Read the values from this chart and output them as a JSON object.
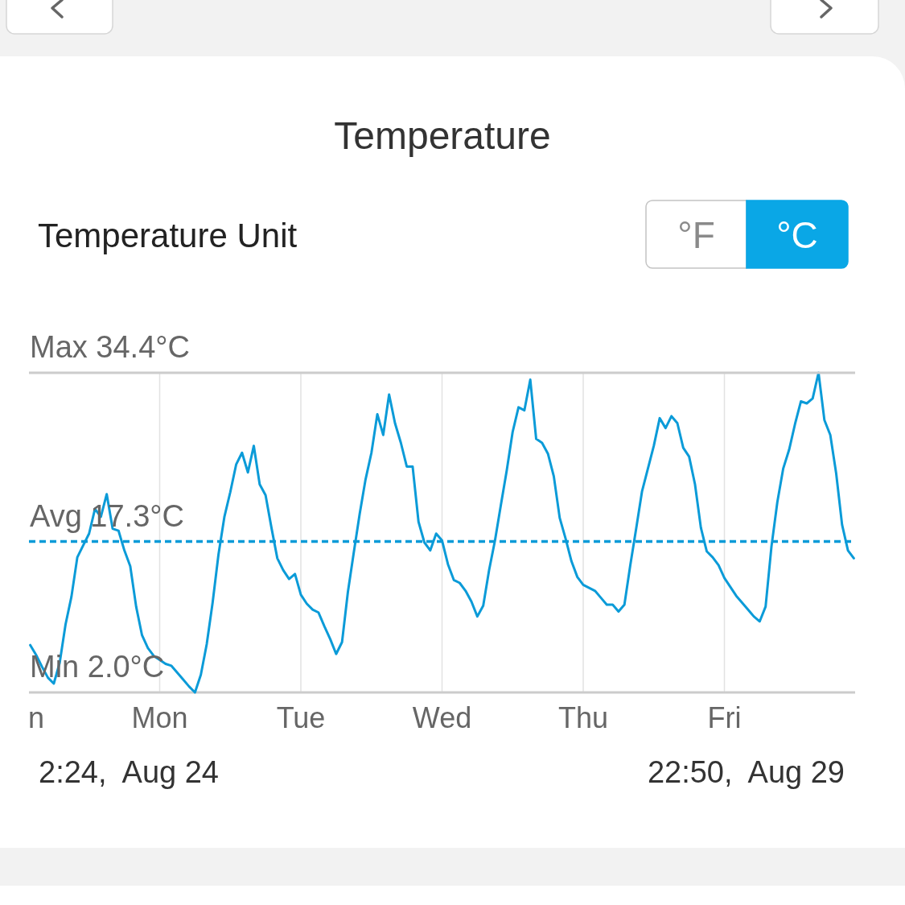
{
  "chart_data": {
    "type": "line",
    "title": "Temperature",
    "annotations": [
      "Temperature Unit",
      "°F",
      "°C",
      "2:24,  Aug 24",
      "22:50,  Aug 29",
      "Min 2.0°C"
    ],
    "categories": [
      null,
      "n",
      null,
      null,
      null,
      null,
      null,
      null,
      null,
      null,
      null,
      null,
      null,
      null,
      null,
      null,
      null,
      null,
      null,
      null,
      null,
      null,
      "Mon",
      null,
      null,
      null,
      null,
      null,
      null,
      null,
      null,
      null,
      null,
      null,
      null,
      null,
      null,
      null,
      null,
      null,
      null,
      null,
      null,
      null,
      null,
      null,
      "Tue",
      null,
      null,
      null,
      null,
      null,
      null,
      null,
      null,
      null,
      null,
      null,
      null,
      null,
      null,
      null,
      null,
      null,
      null,
      null,
      null,
      null,
      null,
      null,
      "Wed",
      null,
      null,
      null,
      null,
      null,
      null,
      null,
      null,
      null,
      null,
      null,
      null,
      null,
      null,
      null,
      null,
      null,
      null,
      null,
      null,
      null,
      null,
      null,
      "Thu",
      null,
      null,
      null,
      null,
      null,
      null,
      null,
      null,
      null,
      null,
      null,
      null,
      null,
      null,
      null,
      null,
      null,
      null,
      null,
      null,
      null,
      null,
      null,
      "Fri",
      null,
      null,
      null,
      null,
      null,
      null,
      null,
      null,
      null,
      null,
      null,
      null,
      null,
      null,
      null,
      null,
      null,
      null,
      null,
      null,
      null,
      null
    ],
    "series": [
      {
        "color": "#0b9bd8",
        "values": [
          6.8,
          5.8,
          4.6,
          3.5,
          2.9,
          5.0,
          8.9,
          11.7,
          15.7,
          16.9,
          18.1,
          20.6,
          19.8,
          22.1,
          18.6,
          18.4,
          16.4,
          14.8,
          10.7,
          7.8,
          6.5,
          5.7,
          5.3,
          4.9,
          4.7,
          4.0,
          3.3,
          2.6,
          2.0,
          3.8,
          6.9,
          11.1,
          16.0,
          19.8,
          22.3,
          25.1,
          26.3,
          24.3,
          27.0,
          23.1,
          22.0,
          18.7,
          15.6,
          14.4,
          13.5,
          14.0,
          11.9,
          11.0,
          10.4,
          10.1,
          8.7,
          7.4,
          5.9,
          7.1,
          12.2,
          16.2,
          20.1,
          23.6,
          26.3,
          30.2,
          28.1,
          32.2,
          29.3,
          27.3,
          24.9,
          24.9,
          19.3,
          17.2,
          16.4,
          18.1,
          17.4,
          15.0,
          13.4,
          13.1,
          12.3,
          11.2,
          9.7,
          10.8,
          14.4,
          17.4,
          21.0,
          24.5,
          28.4,
          30.9,
          30.6,
          33.7,
          27.7,
          27.3,
          26.2,
          23.9,
          19.7,
          17.6,
          15.3,
          13.7,
          12.9,
          12.6,
          12.3,
          11.6,
          10.9,
          10.9,
          10.2,
          10.9,
          14.9,
          18.6,
          22.4,
          24.7,
          27.0,
          29.8,
          28.8,
          30.0,
          29.3,
          26.8,
          25.9,
          23.1,
          18.7,
          16.3,
          15.7,
          14.9,
          13.6,
          12.7,
          11.8,
          11.1,
          10.4,
          9.7,
          9.2,
          10.7,
          16.8,
          21.3,
          24.7,
          26.6,
          29.2,
          31.5,
          31.3,
          31.8,
          34.4,
          29.6,
          28.1,
          24.2,
          19.0,
          16.4,
          15.6
        ]
      }
    ],
    "ylim": [
      2.0,
      34.4
    ],
    "ref_lines": [
      {
        "axis": "y",
        "value": 34.4,
        "label": "Max 34.4°C",
        "color": "#cccccc"
      },
      {
        "axis": "y",
        "value": 17.3,
        "label": "Avg 17.3°C",
        "color": "#0b9bd8",
        "line_style": "dashed"
      }
    ],
    "grid": "x",
    "tick_labels": "x"
  }
}
